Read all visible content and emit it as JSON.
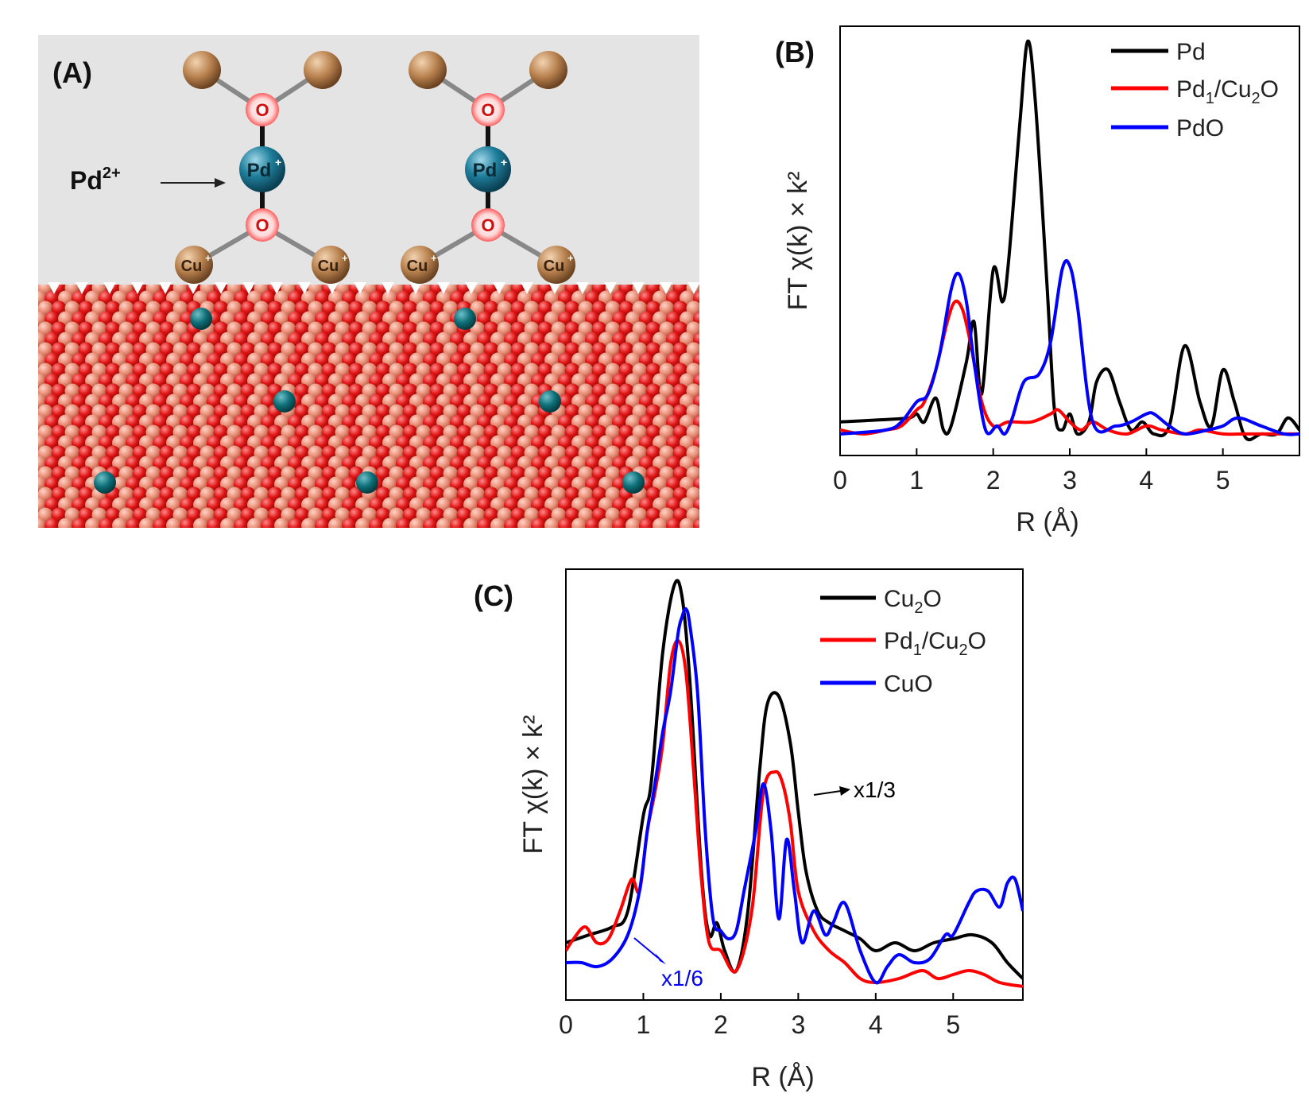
{
  "panelA": {
    "label": "(A)",
    "ion_label": "Pd",
    "ion_charge": "2+",
    "atom_pd": "Pd",
    "atom_o": "O",
    "atom_cu": "Cu",
    "superscript_plus": "+"
  },
  "chart_data": [
    {
      "panel": "(B)",
      "type": "line",
      "xlabel": "R (Å)",
      "ylabel": "FT χ(k) × k²",
      "xlim": [
        0,
        6
      ],
      "xticks": [
        "0",
        "1",
        "2",
        "3",
        "4",
        "5"
      ],
      "ylim": [
        0,
        100
      ],
      "series": [
        {
          "name": "Pd",
          "color": "#000000",
          "x": [
            0,
            0.5,
            0.9,
            1.0,
            1.1,
            1.25,
            1.35,
            1.45,
            1.65,
            1.75,
            1.85,
            2.0,
            2.12,
            2.2,
            2.35,
            2.45,
            2.55,
            2.7,
            2.8,
            2.9,
            3.0,
            3.1,
            3.25,
            3.35,
            3.5,
            3.65,
            3.8,
            3.95,
            4.1,
            4.3,
            4.5,
            4.7,
            4.85,
            5.0,
            5.15,
            5.3,
            5.5,
            5.7,
            5.85,
            6.0
          ],
          "y": [
            5,
            5.5,
            6,
            7,
            5,
            11,
            3,
            4,
            20,
            30,
            12,
            43,
            35,
            45,
            80,
            100,
            85,
            40,
            8,
            3,
            7,
            2,
            5,
            15,
            18,
            10,
            3,
            5,
            2,
            4,
            24,
            10,
            4,
            18,
            10,
            1,
            2,
            2,
            6,
            3
          ]
        },
        {
          "name": "Pd1/Cu2O",
          "color": "#ff0000",
          "x": [
            0,
            0.3,
            0.6,
            0.8,
            1.0,
            1.1,
            1.25,
            1.4,
            1.5,
            1.6,
            1.7,
            1.85,
            2.0,
            2.2,
            2.5,
            2.75,
            2.85,
            3.0,
            3.15,
            3.3,
            3.5,
            3.75,
            4.0,
            4.2,
            4.5,
            4.7,
            5.0,
            5.3,
            6.0
          ],
          "y": [
            3,
            2,
            3,
            4,
            8,
            10,
            18,
            30,
            35,
            33,
            25,
            10,
            4,
            5,
            5,
            7,
            8,
            5,
            3,
            5,
            3,
            2,
            4,
            3,
            2,
            3,
            2,
            2,
            2
          ]
        },
        {
          "name": "PdO",
          "color": "#0000ff",
          "x": [
            0,
            0.6,
            0.8,
            1.0,
            1.15,
            1.3,
            1.45,
            1.55,
            1.65,
            1.75,
            1.9,
            2.05,
            2.15,
            2.25,
            2.4,
            2.6,
            2.75,
            2.9,
            3.0,
            3.1,
            3.3,
            3.6,
            3.8,
            4.0,
            4.1,
            4.3,
            4.5,
            4.8,
            5.0,
            5.2,
            5.5,
            5.8,
            6.0
          ],
          "y": [
            2,
            3,
            5,
            10,
            12,
            22,
            38,
            42,
            35,
            20,
            3,
            4,
            2,
            6,
            15,
            17,
            25,
            43,
            44,
            34,
            5,
            4,
            5,
            7,
            7,
            4,
            2,
            3,
            4,
            6,
            4,
            2,
            2
          ]
        }
      ]
    },
    {
      "panel": "(C)",
      "type": "line",
      "xlabel": "R (Å)",
      "ylabel": "FT χ(k) × k²",
      "xlim": [
        0,
        5.9
      ],
      "xticks": [
        "0",
        "1",
        "2",
        "3",
        "4",
        "5"
      ],
      "ylim": [
        0,
        100
      ],
      "annotations": [
        {
          "text": "x1/3",
          "color": "#000000"
        },
        {
          "text": "x1/6",
          "color": "#0000ff"
        }
      ],
      "series": [
        {
          "name": "Cu2O",
          "color": "#000000",
          "x": [
            0,
            0.3,
            0.6,
            0.8,
            1.0,
            1.1,
            1.25,
            1.4,
            1.5,
            1.6,
            1.75,
            1.85,
            1.95,
            2.05,
            2.2,
            2.35,
            2.5,
            2.6,
            2.75,
            2.9,
            3.0,
            3.1,
            3.25,
            3.4,
            3.6,
            3.8,
            4.0,
            4.25,
            4.5,
            4.75,
            5.0,
            5.25,
            5.5,
            5.7,
            5.9
          ],
          "y": [
            12,
            14,
            16,
            20,
            44,
            52,
            85,
            102,
            99,
            78,
            30,
            14,
            17,
            10,
            5,
            20,
            55,
            72,
            74,
            62,
            45,
            30,
            20,
            17,
            15,
            13,
            10,
            12,
            10,
            12,
            13,
            14,
            12,
            7,
            3
          ]
        },
        {
          "name": "Pd1/Cu2O",
          "color": "#ff0000",
          "x": [
            0,
            0.1,
            0.25,
            0.4,
            0.55,
            0.7,
            0.85,
            0.95,
            1.05,
            1.15,
            1.25,
            1.35,
            1.45,
            1.55,
            1.65,
            1.75,
            1.85,
            2.0,
            2.2,
            2.4,
            2.55,
            2.7,
            2.8,
            2.9,
            3.0,
            3.2,
            3.4,
            3.6,
            3.8,
            4.0,
            4.3,
            4.6,
            4.8,
            5.0,
            5.2,
            5.4,
            5.6,
            5.9
          ],
          "y": [
            10,
            13,
            16,
            12,
            13,
            20,
            28,
            25,
            40,
            50,
            62,
            82,
            88,
            80,
            55,
            28,
            12,
            10,
            5,
            20,
            50,
            55,
            52,
            42,
            25,
            15,
            10,
            7,
            3,
            2,
            3,
            5,
            3,
            4,
            5,
            4,
            2,
            1
          ]
        },
        {
          "name": "CuO",
          "color": "#0000ff",
          "x": [
            0,
            0.2,
            0.4,
            0.6,
            0.8,
            0.95,
            1.05,
            1.15,
            1.25,
            1.35,
            1.45,
            1.5,
            1.55,
            1.6,
            1.7,
            1.8,
            1.9,
            2.0,
            2.1,
            2.2,
            2.3,
            2.45,
            2.55,
            2.65,
            2.75,
            2.85,
            2.95,
            3.05,
            3.2,
            3.35,
            3.45,
            3.6,
            3.8,
            4.0,
            4.15,
            4.3,
            4.5,
            4.7,
            4.9,
            5.0,
            5.2,
            5.3,
            5.45,
            5.6,
            5.7,
            5.8,
            5.9
          ],
          "y": [
            7,
            7,
            6,
            8,
            14,
            25,
            40,
            52,
            65,
            75,
            90,
            94,
            96,
            92,
            75,
            40,
            18,
            15,
            13,
            15,
            25,
            40,
            52,
            40,
            18,
            38,
            25,
            12,
            20,
            14,
            17,
            22,
            10,
            2,
            6,
            9,
            7,
            8,
            14,
            14,
            22,
            25,
            25,
            21,
            27,
            28,
            20
          ]
        }
      ]
    }
  ]
}
